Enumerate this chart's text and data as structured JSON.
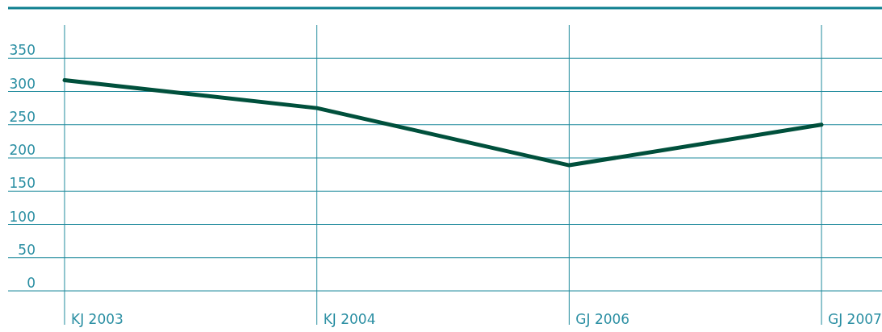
{
  "chart_data": {
    "type": "line",
    "categories": [
      "KJ 2003",
      "KJ 2004",
      "GJ 2006",
      "GJ 2007"
    ],
    "series": [
      {
        "color": "#00503c",
        "values": [
          317,
          275,
          189,
          250
        ]
      }
    ],
    "ylim": [
      0,
      400
    ],
    "yticks": [
      0,
      50,
      100,
      150,
      200,
      250,
      300,
      350
    ],
    "grid": true,
    "marker": "none",
    "line_style": "solid"
  }
}
